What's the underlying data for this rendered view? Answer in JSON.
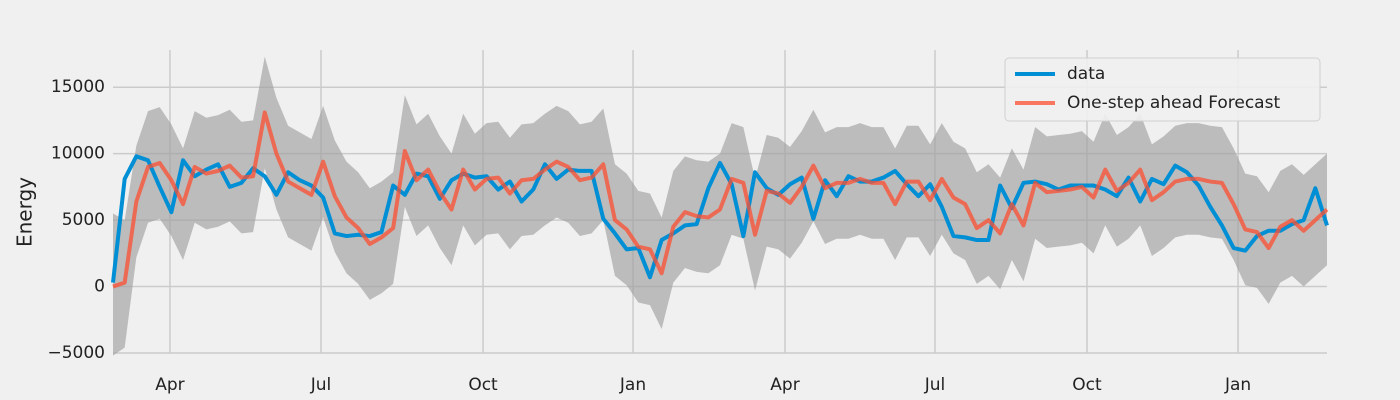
{
  "chart_data": {
    "type": "line",
    "ylabel": "Energy",
    "x": [
      0,
      1,
      2,
      3,
      4,
      5,
      6,
      7,
      8,
      9,
      10,
      11,
      12,
      13,
      14,
      15,
      16,
      17,
      18,
      19,
      20,
      21,
      22,
      23,
      24,
      25,
      26,
      27,
      28,
      29,
      30,
      31,
      32,
      33,
      34,
      35,
      36,
      37,
      38,
      39,
      40,
      41,
      42,
      43,
      44,
      45,
      46,
      47,
      48,
      49,
      50,
      51,
      52,
      53,
      54,
      55,
      56,
      57,
      58,
      59,
      60,
      61,
      62,
      63,
      64,
      65,
      66,
      67,
      68,
      69,
      70,
      71,
      72,
      73,
      74,
      75,
      76,
      77,
      78,
      79,
      80,
      81,
      82,
      83,
      84,
      85,
      86,
      87,
      88,
      89,
      90,
      91,
      92,
      93,
      94,
      95,
      96,
      97,
      98,
      99,
      100,
      101,
      102,
      103,
      104
    ],
    "series": [
      {
        "name": "data",
        "color": "#008fd5",
        "values": [
          300,
          8100,
          9800,
          9500,
          7500,
          5600,
          9500,
          8300,
          8800,
          9200,
          7500,
          7800,
          8900,
          8300,
          6900,
          8600,
          8000,
          7600,
          6700,
          4000,
          3800,
          3900,
          3800,
          4100,
          7600,
          6900,
          8500,
          8300,
          6600,
          8000,
          8500,
          8200,
          8300,
          7300,
          7900,
          6400,
          7300,
          9200,
          8100,
          8800,
          8700,
          8700,
          5100,
          4000,
          2800,
          2900,
          700,
          3500,
          4000,
          4600,
          4700,
          7400,
          9300,
          7700,
          3800,
          8600,
          7400,
          6900,
          7700,
          8200,
          5100,
          8000,
          6800,
          8300,
          7900,
          7900,
          8200,
          8700,
          7700,
          6800,
          7700,
          6000,
          3800,
          3700,
          3500,
          3500,
          7600,
          5900,
          7800,
          7900,
          7700,
          7300,
          7600,
          7600,
          7600,
          7300,
          6800,
          8200,
          6400,
          8100,
          7700,
          9100,
          8600,
          7600,
          6000,
          4600,
          2900,
          2700,
          3800,
          4200,
          4200,
          4700,
          5000,
          7400,
          4600
        ]
      },
      {
        "name": "One-step ahead Forecast",
        "color": "#fc4f30",
        "values": [
          0,
          300,
          6400,
          9000,
          9300,
          8000,
          6200,
          9000,
          8500,
          8700,
          9100,
          8200,
          8300,
          13100,
          10000,
          7900,
          7400,
          6900,
          9400,
          6800,
          5200,
          4400,
          3200,
          3700,
          4400,
          10200,
          8000,
          8800,
          7100,
          5800,
          8800,
          7300,
          8100,
          8200,
          7000,
          8000,
          8100,
          8800,
          9400,
          9000,
          8000,
          8200,
          9200,
          5000,
          4300,
          3000,
          2800,
          1000,
          4500,
          5600,
          5300,
          5200,
          5800,
          8100,
          7800,
          3900,
          7200,
          7000,
          6300,
          7500,
          9100,
          7400,
          7800,
          7800,
          8100,
          7800,
          7800,
          6200,
          7900,
          7900,
          6500,
          8100,
          6700,
          6200,
          4400,
          5000,
          4000,
          6200,
          4600,
          7800,
          7100,
          7200,
          7300,
          7500,
          6700,
          8800,
          7200,
          7800,
          8800,
          6500,
          7100,
          7900,
          8100,
          8100,
          7900,
          7800,
          6200,
          4300,
          4100,
          2900,
          4500,
          5000,
          4200,
          5000,
          5800
        ]
      }
    ],
    "band": {
      "color": "#a0a0a0",
      "lower": [
        -5200,
        -4600,
        2200,
        4800,
        5100,
        3800,
        2000,
        4800,
        4300,
        4500,
        4900,
        4000,
        4100,
        8900,
        5800,
        3700,
        3200,
        2700,
        5200,
        2600,
        1000,
        200,
        -1000,
        -500,
        200,
        6000,
        3800,
        4600,
        2900,
        1600,
        4600,
        3100,
        3900,
        4000,
        2800,
        3800,
        3900,
        4600,
        5200,
        4800,
        3800,
        4000,
        5000,
        800,
        100,
        -1200,
        -1400,
        -3200,
        300,
        1400,
        1100,
        1000,
        1600,
        3900,
        3600,
        -300,
        3000,
        2800,
        2100,
        3300,
        4900,
        3200,
        3600,
        3600,
        3900,
        3600,
        3600,
        2000,
        3700,
        3700,
        2300,
        3900,
        2500,
        2000,
        200,
        800,
        -200,
        2000,
        400,
        3600,
        2900,
        3000,
        3100,
        3300,
        2500,
        4600,
        3000,
        3600,
        4600,
        2300,
        2900,
        3700,
        3900,
        3900,
        3700,
        3600,
        2000,
        100,
        -100,
        -1300,
        300,
        800,
        0,
        800,
        1600
      ],
      "upper": [
        5500,
        5000,
        10600,
        13200,
        13500,
        12200,
        10400,
        13200,
        12700,
        12900,
        13300,
        12400,
        12500,
        17300,
        14200,
        12100,
        11600,
        11100,
        13600,
        11000,
        9400,
        8600,
        7400,
        7900,
        8600,
        14400,
        12200,
        13000,
        11300,
        10000,
        13000,
        11500,
        12300,
        12400,
        11200,
        12200,
        12300,
        13000,
        13600,
        13200,
        12200,
        12400,
        13400,
        9200,
        8500,
        7200,
        7000,
        5200,
        8700,
        9800,
        9500,
        9400,
        10000,
        12300,
        12000,
        8100,
        11400,
        11200,
        10500,
        11700,
        13300,
        11600,
        12000,
        12000,
        12300,
        12000,
        12000,
        10400,
        12100,
        12100,
        10700,
        12300,
        10900,
        10400,
        8600,
        9200,
        8200,
        10400,
        8800,
        12000,
        11300,
        11400,
        11500,
        11700,
        10900,
        13000,
        11400,
        12000,
        13000,
        10700,
        11300,
        12100,
        12300,
        12300,
        12100,
        12000,
        10400,
        8500,
        8300,
        7100,
        8700,
        9200,
        8400,
        9200,
        10000
      ]
    },
    "xlim": [
      0,
      104
    ],
    "xticks": [
      {
        "value": 4.88,
        "label": "Apr"
      },
      {
        "value": 17.82,
        "label": "Jul"
      },
      {
        "value": 31.7,
        "label": "Oct"
      },
      {
        "value": 44.55,
        "label": "Jan"
      },
      {
        "value": 57.57,
        "label": "Apr"
      },
      {
        "value": 70.42,
        "label": "Jul"
      },
      {
        "value": 83.44,
        "label": "Oct"
      },
      {
        "value": 96.38,
        "label": "Jan"
      }
    ],
    "ylim": [
      -5000,
      17800
    ],
    "yticks": [
      {
        "value": -5000,
        "label": "−5000"
      },
      0,
      5000,
      10000,
      15000
    ],
    "grid": true,
    "legend": "upper right"
  }
}
